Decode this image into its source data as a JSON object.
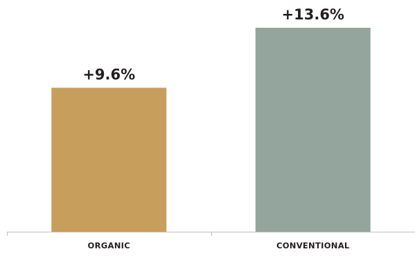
{
  "chart_data": {
    "type": "bar",
    "categories": [
      "ORGANIC",
      "CONVENTIONAL"
    ],
    "values": [
      9.6,
      13.6
    ],
    "value_labels": [
      "+9.6%",
      "+13.6%"
    ],
    "colors": [
      "#c89e5c",
      "#94a59d"
    ],
    "axis_color": "#bfbfbf",
    "ylim": [
      0,
      13.6
    ],
    "grid": false,
    "title": "",
    "xlabel": "",
    "ylabel": ""
  }
}
